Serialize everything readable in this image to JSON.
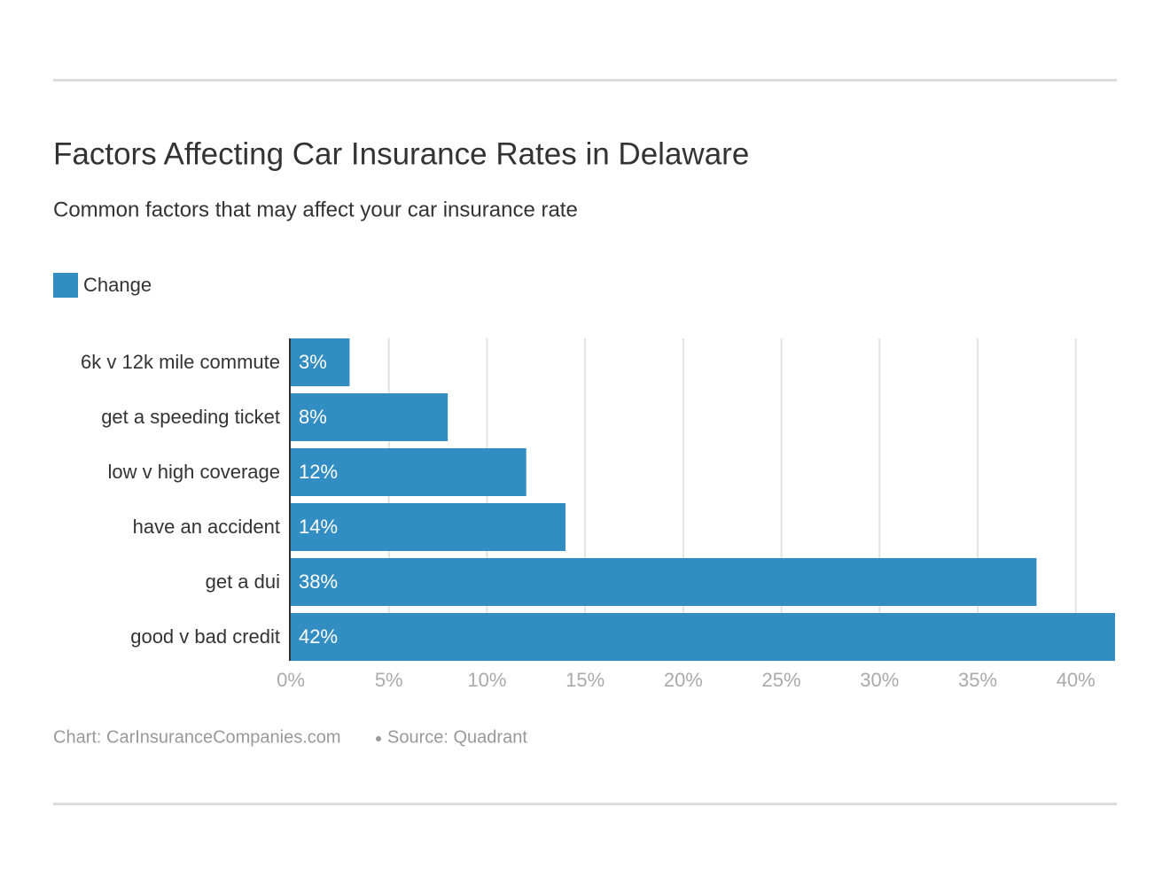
{
  "chart_data": {
    "type": "bar",
    "orientation": "horizontal",
    "title": "Factors Affecting Car Insurance Rates in Delaware",
    "subtitle": "Common factors that may affect your car insurance rate",
    "categories": [
      "6k v 12k mile commute",
      "get a speeding ticket",
      "low v high coverage",
      "have an accident",
      "get a dui",
      "good v bad credit"
    ],
    "series": [
      {
        "name": "Change",
        "color": "#328dc2",
        "values": [
          3,
          8,
          12,
          14,
          38,
          42
        ],
        "value_labels": [
          "3%",
          "8%",
          "12%",
          "14%",
          "38%",
          "42%"
        ]
      }
    ],
    "xlim": [
      0,
      42
    ],
    "xticks": [
      {
        "value": 0,
        "label": "0%"
      },
      {
        "value": 5,
        "label": "5%"
      },
      {
        "value": 10,
        "label": "10%"
      },
      {
        "value": 15,
        "label": "15%"
      },
      {
        "value": 20,
        "label": "20%"
      },
      {
        "value": 25,
        "label": "25%"
      },
      {
        "value": 30,
        "label": "30%"
      },
      {
        "value": 35,
        "label": "35%"
      },
      {
        "value": 40,
        "label": "40%"
      }
    ],
    "grid": true,
    "credit": "Chart: CarInsuranceCompanies.com",
    "source": "Source: Quadrant"
  }
}
